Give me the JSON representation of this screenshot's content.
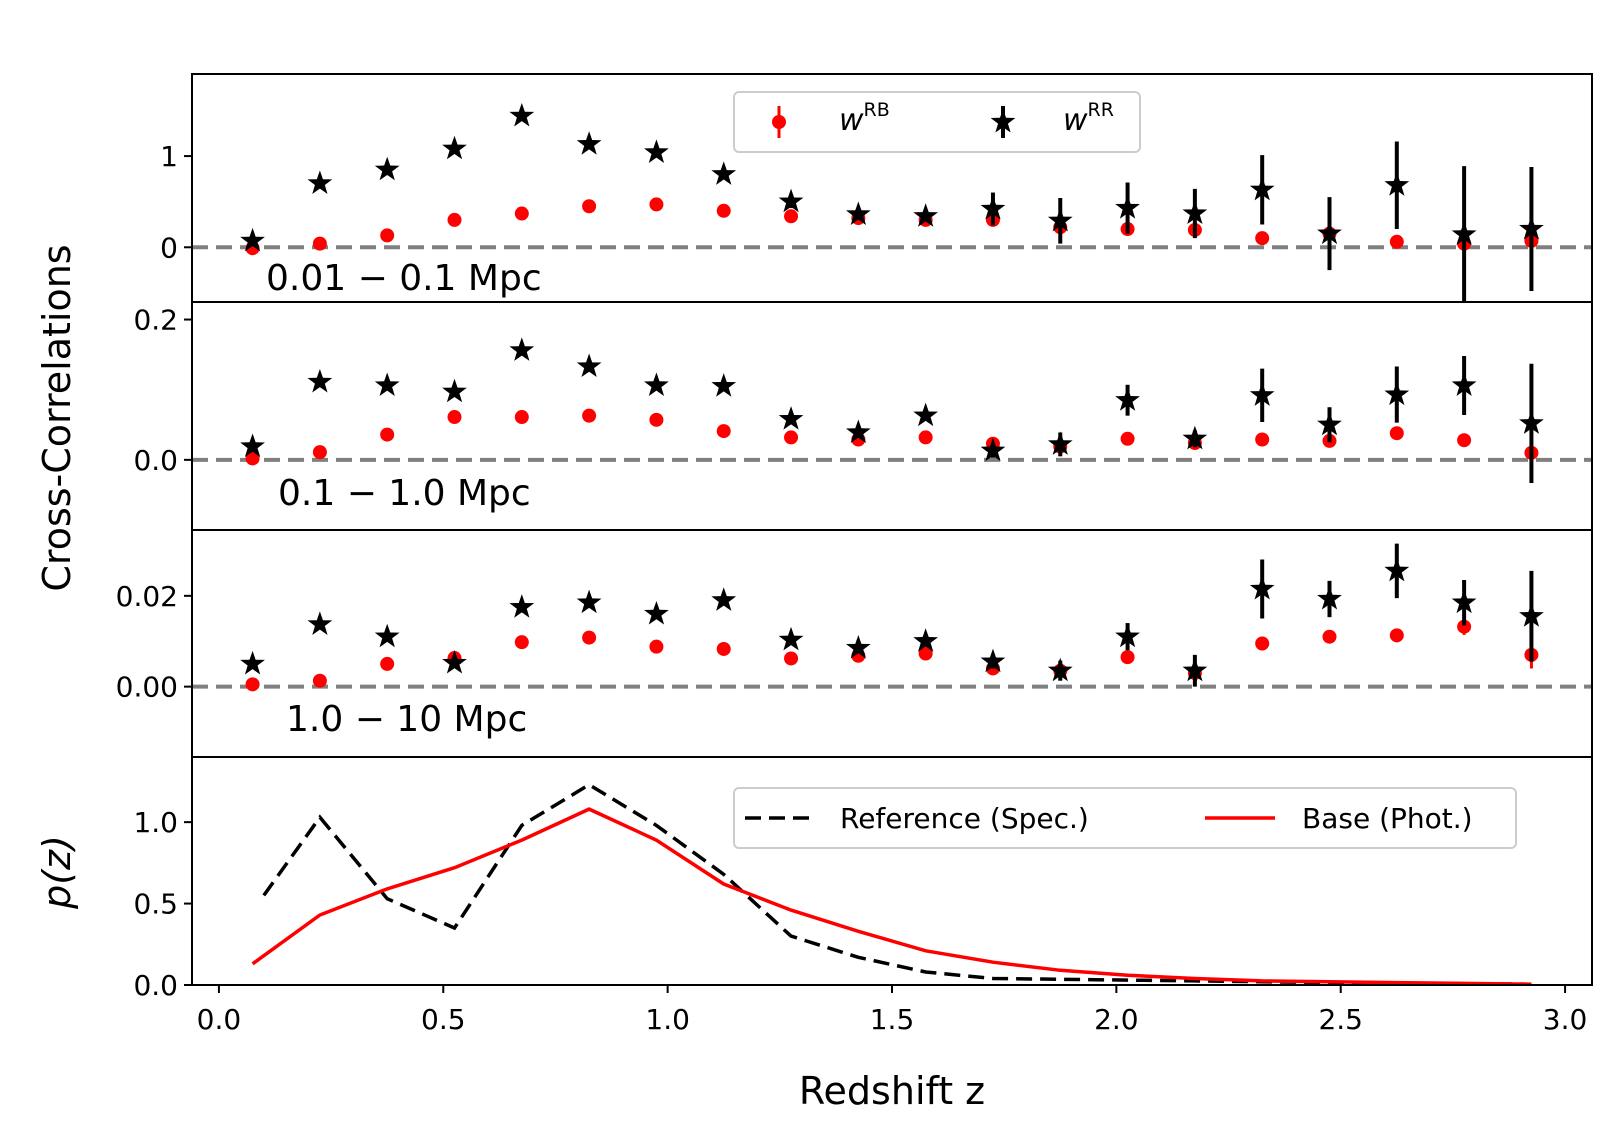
{
  "chart_data": [
    {
      "type": "scatter",
      "panel": "top",
      "range_label": "0.01 − 0.1 Mpc",
      "ylim": [
        -0.6,
        1.9
      ],
      "yticks": [
        0,
        1
      ],
      "ytick_labels": [
        "0",
        "1"
      ],
      "legend": {
        "placement": "top-center",
        "entries": [
          {
            "series": "wRB",
            "base": "w",
            "sup": "RB",
            "color": "#ff0000",
            "marker": "circle"
          },
          {
            "series": "wRR",
            "base": "w",
            "sup": "RR",
            "color": "#000000",
            "marker": "star"
          }
        ]
      },
      "reference_line": {
        "y": 0,
        "color": "#808080",
        "style": "dashed"
      },
      "x": [
        0.075,
        0.225,
        0.375,
        0.525,
        0.675,
        0.825,
        0.975,
        1.125,
        1.275,
        1.425,
        1.575,
        1.725,
        1.875,
        2.025,
        2.175,
        2.325,
        2.475,
        2.625,
        2.775,
        2.925
      ],
      "series": [
        {
          "name": "wRR",
          "color": "#000000",
          "marker": "star",
          "values": [
            0.07,
            0.7,
            0.85,
            1.08,
            1.44,
            1.13,
            1.04,
            0.8,
            0.5,
            0.36,
            0.34,
            0.42,
            0.29,
            0.43,
            0.37,
            0.63,
            0.15,
            0.68,
            0.14,
            0.2
          ],
          "errors": [
            0.02,
            0.03,
            0.03,
            0.03,
            0.04,
            0.04,
            0.04,
            0.04,
            0.07,
            0.05,
            0.06,
            0.18,
            0.25,
            0.28,
            0.27,
            0.38,
            0.4,
            0.48,
            0.75,
            0.68
          ]
        },
        {
          "name": "wRB",
          "color": "#ff0000",
          "marker": "circle",
          "values": [
            -0.01,
            0.04,
            0.13,
            0.3,
            0.37,
            0.45,
            0.47,
            0.4,
            0.34,
            0.32,
            0.3,
            0.3,
            0.22,
            0.2,
            0.19,
            0.1,
            0.15,
            0.06,
            0.04,
            0.07
          ],
          "errors": [
            0.01,
            0.01,
            0.01,
            0.01,
            0.01,
            0.01,
            0.01,
            0.01,
            0.02,
            0.02,
            0.02,
            0.03,
            0.04,
            0.05,
            0.05,
            0.05,
            0.05,
            0.05,
            0.06,
            0.06
          ]
        }
      ]
    },
    {
      "type": "scatter",
      "panel": "second",
      "range_label": "0.1 − 1.0 Mpc",
      "ylim": [
        -0.1,
        0.225
      ],
      "yticks": [
        0.0,
        0.2
      ],
      "ytick_labels": [
        "0.0",
        "0.2"
      ],
      "reference_line": {
        "y": 0,
        "color": "#808080",
        "style": "dashed"
      },
      "x": [
        0.075,
        0.225,
        0.375,
        0.525,
        0.675,
        0.825,
        0.975,
        1.125,
        1.275,
        1.425,
        1.575,
        1.725,
        1.875,
        2.025,
        2.175,
        2.325,
        2.475,
        2.625,
        2.775,
        2.925
      ],
      "series": [
        {
          "name": "wRR",
          "color": "#000000",
          "marker": "star",
          "values": [
            0.019,
            0.111,
            0.106,
            0.097,
            0.156,
            0.133,
            0.106,
            0.105,
            0.058,
            0.039,
            0.063,
            0.013,
            0.022,
            0.085,
            0.03,
            0.092,
            0.05,
            0.093,
            0.106,
            0.052
          ],
          "errors": [
            0.003,
            0.004,
            0.004,
            0.004,
            0.005,
            0.005,
            0.005,
            0.005,
            0.006,
            0.006,
            0.007,
            0.01,
            0.017,
            0.022,
            0.012,
            0.038,
            0.025,
            0.04,
            0.042,
            0.085
          ]
        },
        {
          "name": "wRB",
          "color": "#ff0000",
          "marker": "circle",
          "values": [
            0.002,
            0.011,
            0.036,
            0.061,
            0.061,
            0.063,
            0.057,
            0.041,
            0.032,
            0.029,
            0.032,
            0.023,
            0.019,
            0.03,
            0.024,
            0.029,
            0.027,
            0.038,
            0.028,
            0.01
          ],
          "errors": [
            0.001,
            0.001,
            0.002,
            0.002,
            0.002,
            0.002,
            0.002,
            0.002,
            0.003,
            0.003,
            0.003,
            0.003,
            0.004,
            0.004,
            0.004,
            0.004,
            0.005,
            0.005,
            0.005,
            0.007
          ]
        }
      ]
    },
    {
      "type": "scatter",
      "panel": "third",
      "range_label": "1.0 − 10 Mpc",
      "ylim": [
        -0.0155,
        0.0345
      ],
      "yticks": [
        0.0,
        0.02
      ],
      "ytick_labels": [
        "0.00",
        "0.02"
      ],
      "reference_line": {
        "y": 0,
        "color": "#808080",
        "style": "dashed"
      },
      "x": [
        0.075,
        0.225,
        0.375,
        0.525,
        0.675,
        0.825,
        0.975,
        1.125,
        1.275,
        1.425,
        1.575,
        1.725,
        1.875,
        2.025,
        2.175,
        2.325,
        2.475,
        2.625,
        2.775,
        2.925
      ],
      "series": [
        {
          "name": "wRR",
          "color": "#000000",
          "marker": "star",
          "values": [
            0.005,
            0.0137,
            0.011,
            0.0052,
            0.0175,
            0.0185,
            0.016,
            0.019,
            0.0103,
            0.0085,
            0.01,
            0.0055,
            0.0035,
            0.011,
            0.0035,
            0.0215,
            0.0193,
            0.0255,
            0.0185,
            0.0155
          ],
          "errors": [
            0.0005,
            0.0005,
            0.0006,
            0.0006,
            0.0007,
            0.0007,
            0.0008,
            0.0008,
            0.001,
            0.001,
            0.0012,
            0.0015,
            0.0022,
            0.003,
            0.0035,
            0.0065,
            0.004,
            0.006,
            0.005,
            0.01
          ]
        },
        {
          "name": "wRB",
          "color": "#ff0000",
          "marker": "circle",
          "values": [
            0.0005,
            0.0013,
            0.005,
            0.0063,
            0.0098,
            0.0108,
            0.0088,
            0.0083,
            0.0062,
            0.0068,
            0.0073,
            0.004,
            0.0035,
            0.0065,
            0.003,
            0.0095,
            0.011,
            0.0113,
            0.0132,
            0.007
          ],
          "errors": [
            0.0002,
            0.0002,
            0.0003,
            0.0003,
            0.0004,
            0.0004,
            0.0004,
            0.0004,
            0.0005,
            0.0005,
            0.0006,
            0.0006,
            0.0008,
            0.0009,
            0.0009,
            0.0015,
            0.0012,
            0.0015,
            0.0018,
            0.003
          ]
        }
      ]
    },
    {
      "type": "line",
      "panel": "bottom",
      "ylabel": "p(z)",
      "xlabel": "Redshift z",
      "xlim": [
        -0.06,
        3.06
      ],
      "ylim": [
        0.0,
        1.4
      ],
      "xticks": [
        0.0,
        0.5,
        1.0,
        1.5,
        2.0,
        2.5,
        3.0
      ],
      "xtick_labels": [
        "0.0",
        "0.5",
        "1.0",
        "1.5",
        "2.0",
        "2.5",
        "3.0"
      ],
      "yticks": [
        0.0,
        0.5,
        1.0
      ],
      "ytick_labels": [
        "0.0",
        "0.5",
        "1.0"
      ],
      "legend": {
        "placement": "top-right",
        "entries": [
          {
            "series": "Reference (Spec.)",
            "label": "Reference (Spec.)",
            "color": "#000000",
            "style": "dashed"
          },
          {
            "series": "Base (Phot.)",
            "label": "Base (Phot.)",
            "color": "#ff0000",
            "style": "solid"
          }
        ]
      },
      "series": [
        {
          "name": "Reference (Spec.)",
          "color": "#000000",
          "style": "dashed",
          "x": [
            0.1,
            0.225,
            0.375,
            0.525,
            0.675,
            0.825,
            0.975,
            1.125,
            1.275,
            1.425,
            1.575,
            1.725,
            1.875,
            2.025,
            2.175,
            2.325,
            2.475,
            2.625,
            2.775,
            2.925
          ],
          "values": [
            0.55,
            1.03,
            0.53,
            0.35,
            0.98,
            1.23,
            0.98,
            0.68,
            0.3,
            0.17,
            0.08,
            0.04,
            0.035,
            0.03,
            0.025,
            0.02,
            0.015,
            0.012,
            0.008,
            0.005
          ]
        },
        {
          "name": "Base (Phot.)",
          "color": "#ff0000",
          "style": "solid",
          "x": [
            0.075,
            0.225,
            0.375,
            0.525,
            0.675,
            0.825,
            0.975,
            1.125,
            1.275,
            1.425,
            1.575,
            1.725,
            1.875,
            2.025,
            2.175,
            2.325,
            2.475,
            2.625,
            2.775,
            2.925
          ],
          "values": [
            0.13,
            0.43,
            0.59,
            0.72,
            0.89,
            1.08,
            0.89,
            0.62,
            0.46,
            0.33,
            0.21,
            0.14,
            0.09,
            0.06,
            0.04,
            0.025,
            0.02,
            0.015,
            0.01,
            0.005
          ]
        }
      ]
    }
  ],
  "figure": {
    "shared_ylabel": "Cross-Correlations"
  }
}
